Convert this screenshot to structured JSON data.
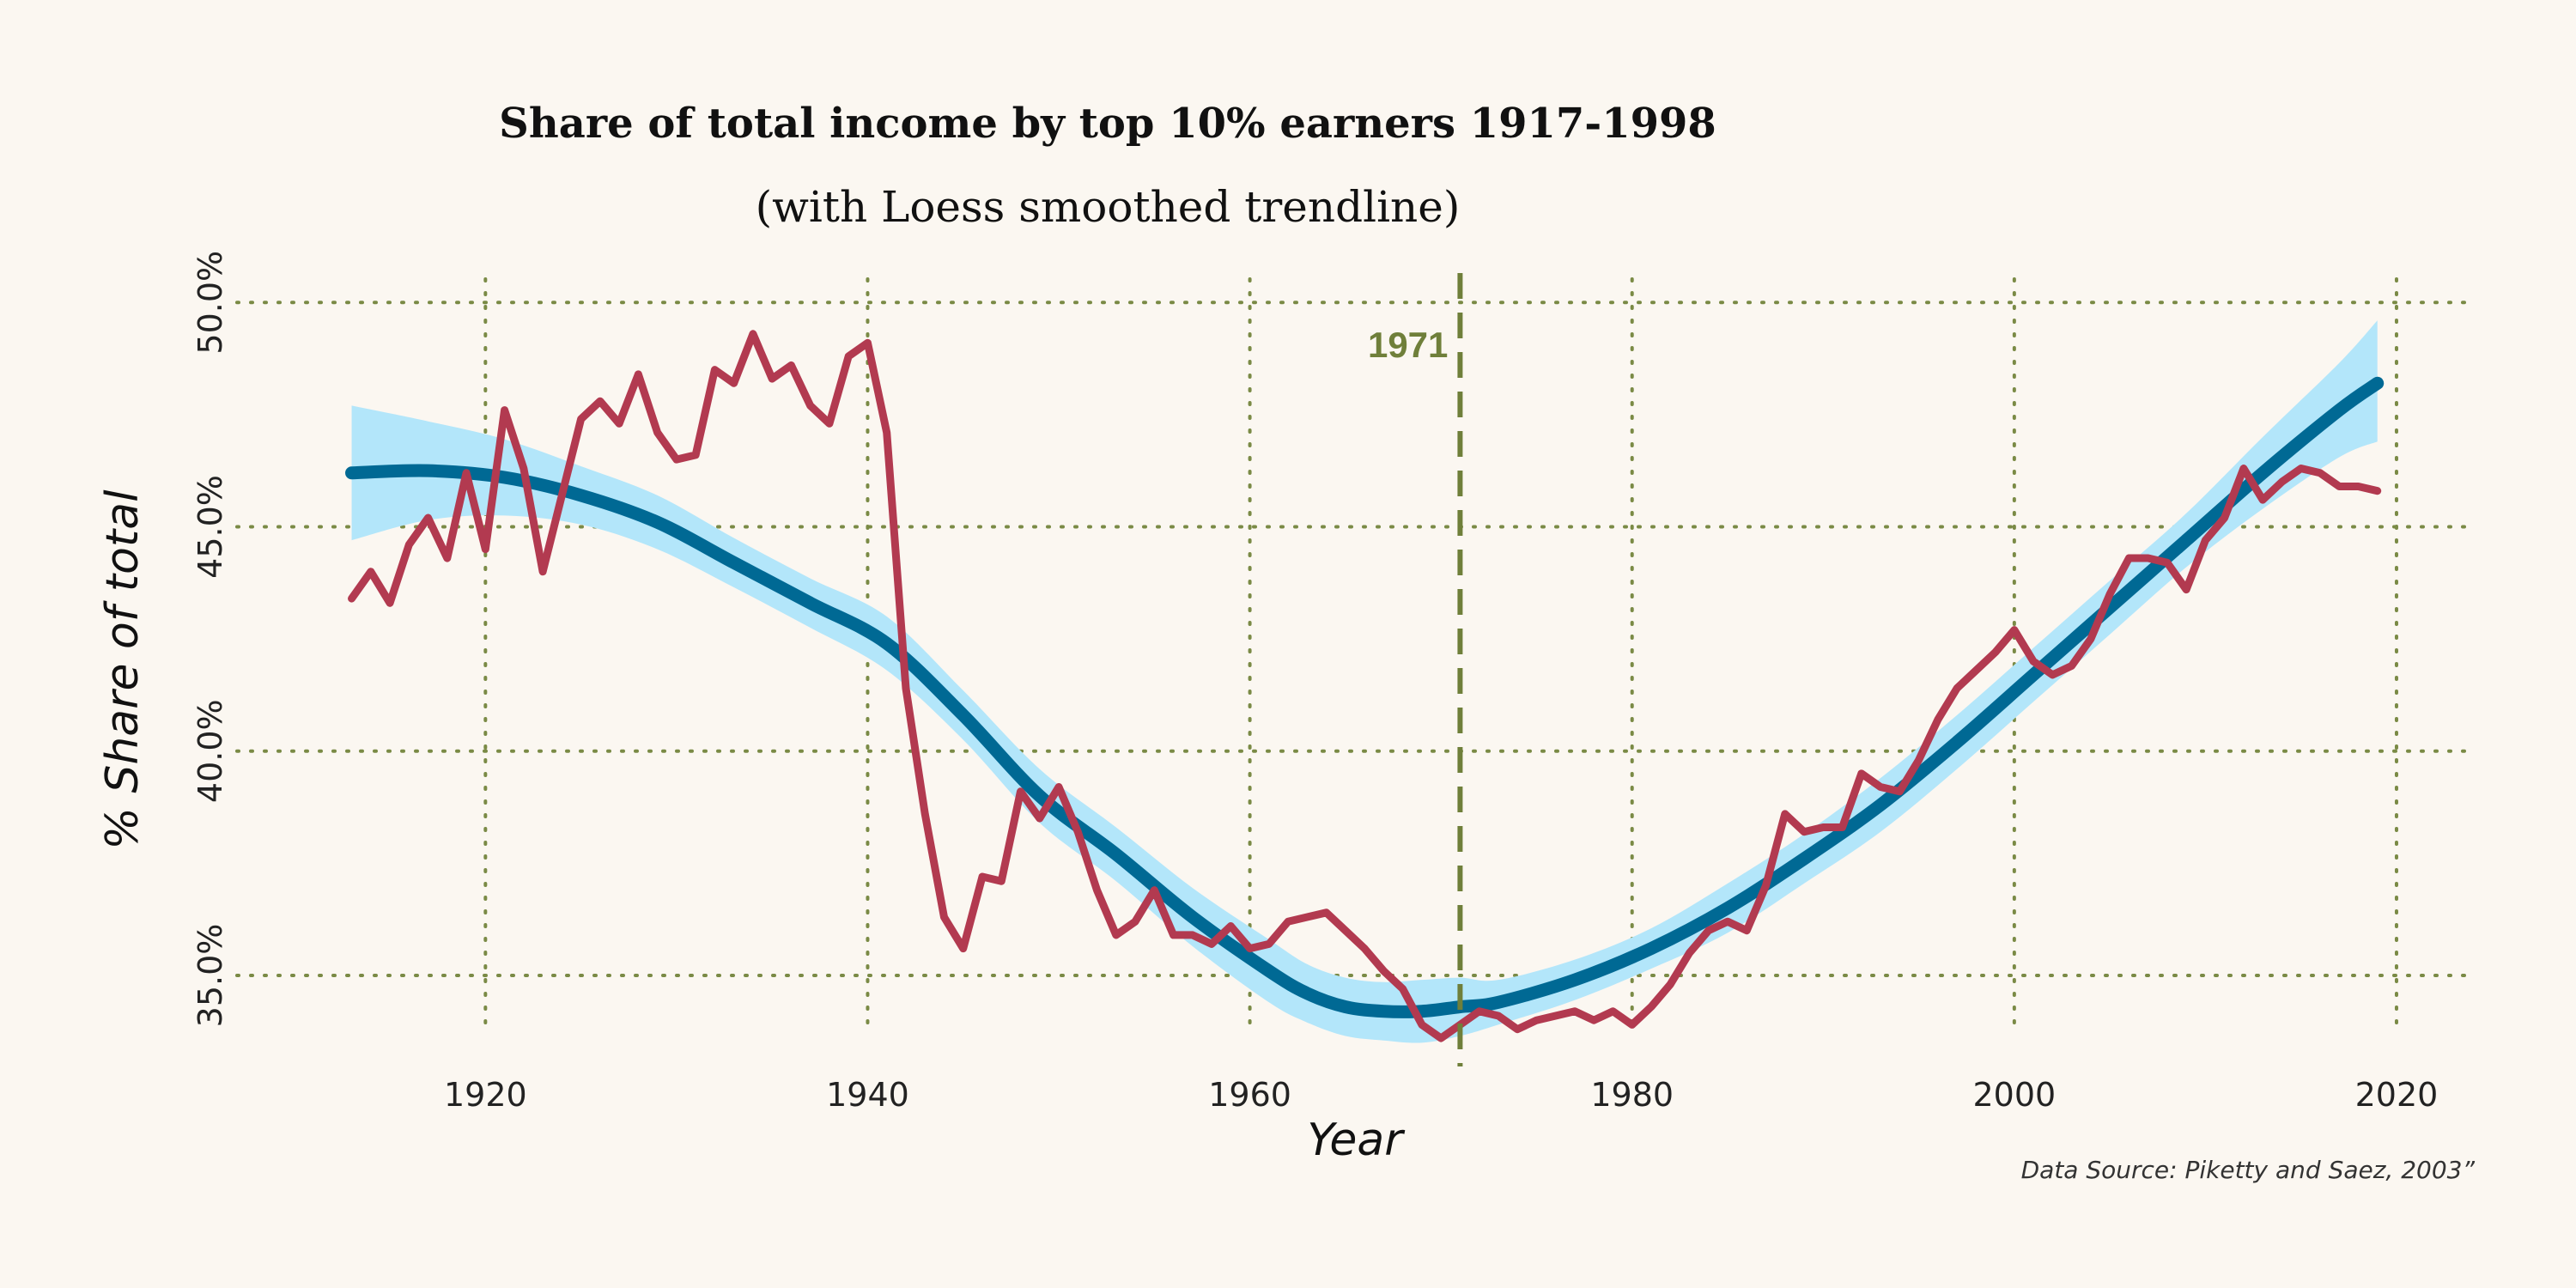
{
  "chart_data": {
    "type": "line",
    "title": "Share of total income by top 10% earners 1917-1998",
    "subtitle": "(with Loess smoothed trendline)",
    "xlabel": "Year",
    "ylabel": "% Share of total",
    "source": "Data Source: Piketty and Saez, 2003”",
    "xlim": [
      1907,
      2024
    ],
    "ylim": [
      33.2,
      51.0
    ],
    "x_ticks": [
      1920,
      1940,
      1960,
      1980,
      2000,
      2020
    ],
    "x_tick_labels": [
      "1920",
      "1940",
      "1960",
      "1980",
      "2000",
      "2020"
    ],
    "y_ticks": [
      35,
      40,
      45,
      50
    ],
    "y_tick_labels": [
      "35.0%",
      "40.0%",
      "45.0%",
      "50.0%"
    ],
    "grid": true,
    "vline": {
      "x": 1971,
      "label": "1971",
      "color": "#6f7f3a"
    },
    "series": [
      {
        "color": "#b23a50",
        "x": [
          1913,
          1914,
          1915,
          1916,
          1917,
          1918,
          1919,
          1920,
          1921,
          1922,
          1923,
          1924,
          1925,
          1926,
          1927,
          1928,
          1929,
          1930,
          1931,
          1932,
          1933,
          1934,
          1935,
          1936,
          1937,
          1938,
          1939,
          1940,
          1941,
          1942,
          1943,
          1944,
          1945,
          1946,
          1947,
          1948,
          1949,
          1950,
          1951,
          1952,
          1953,
          1954,
          1955,
          1956,
          1957,
          1958,
          1959,
          1960,
          1961,
          1962,
          1963,
          1964,
          1965,
          1966,
          1967,
          1968,
          1969,
          1970,
          1971,
          1972,
          1973,
          1974,
          1975,
          1976,
          1977,
          1978,
          1979,
          1980,
          1981,
          1982,
          1983,
          1984,
          1985,
          1986,
          1987,
          1988,
          1989,
          1990,
          1991,
          1992,
          1993,
          1994,
          1995,
          1996,
          1997,
          1998,
          1999,
          2000,
          2001,
          2002,
          2003,
          2004,
          2005,
          2006,
          2007,
          2008,
          2009,
          2010,
          2011,
          2012,
          2013,
          2014,
          2015,
          2016,
          2017,
          2018,
          2019
        ],
        "y": [
          43.4,
          44.0,
          43.3,
          44.6,
          45.2,
          44.3,
          46.2,
          44.5,
          47.6,
          46.3,
          44.0,
          45.7,
          47.4,
          47.8,
          47.3,
          48.4,
          47.1,
          46.5,
          46.6,
          48.5,
          48.2,
          49.3,
          48.3,
          48.6,
          47.7,
          47.3,
          48.8,
          49.1,
          47.1,
          41.4,
          38.6,
          36.3,
          35.6,
          37.2,
          37.1,
          39.1,
          38.5,
          39.2,
          38.2,
          36.9,
          35.9,
          36.2,
          36.9,
          35.9,
          35.9,
          35.7,
          36.1,
          35.6,
          35.7,
          36.2,
          36.3,
          36.4,
          36.0,
          35.6,
          35.1,
          34.7,
          33.9,
          33.6,
          33.9,
          34.2,
          34.1,
          33.8,
          34.0,
          34.1,
          34.2,
          34.0,
          34.2,
          33.9,
          34.3,
          34.8,
          35.5,
          36.0,
          36.2,
          36.0,
          37.0,
          38.6,
          38.2,
          38.3,
          38.3,
          39.5,
          39.2,
          39.1,
          39.8,
          40.7,
          41.4,
          41.8,
          42.2,
          42.7,
          42.0,
          41.7,
          41.9,
          42.5,
          43.5,
          44.3,
          44.3,
          44.2,
          43.6,
          44.7,
          45.2,
          46.3,
          45.6,
          46.0,
          46.3,
          46.2,
          45.9,
          45.9,
          45.8
        ]
      }
    ],
    "trend": {
      "color": "#006994",
      "band_color": "#b3e6fa",
      "x": [
        1913,
        1917,
        1921,
        1925,
        1929,
        1933,
        1937,
        1941,
        1945,
        1949,
        1953,
        1957,
        1961,
        1963,
        1965,
        1967,
        1969,
        1971,
        1973,
        1977,
        1981,
        1985,
        1989,
        1993,
        1997,
        2001,
        2005,
        2009,
        2013,
        2017,
        2019
      ],
      "y": [
        46.2,
        46.25,
        46.1,
        45.7,
        45.1,
        44.2,
        43.3,
        42.4,
        40.8,
        39.0,
        37.7,
        36.3,
        35.1,
        34.6,
        34.3,
        34.2,
        34.2,
        34.3,
        34.4,
        34.9,
        35.6,
        36.5,
        37.6,
        38.8,
        40.2,
        41.7,
        43.2,
        44.7,
        46.2,
        47.6,
        48.2
      ],
      "lower": [
        44.7,
        45.15,
        45.25,
        45.05,
        44.5,
        43.65,
        42.75,
        41.8,
        40.25,
        38.4,
        37.1,
        35.65,
        34.4,
        33.95,
        33.65,
        33.55,
        33.5,
        33.65,
        33.9,
        34.45,
        35.15,
        35.95,
        37.05,
        38.2,
        39.6,
        41.1,
        42.6,
        44.1,
        45.4,
        46.55,
        46.9
      ],
      "upper": [
        47.7,
        47.35,
        46.95,
        46.35,
        45.7,
        44.75,
        43.85,
        43.0,
        41.35,
        39.6,
        38.3,
        36.95,
        35.8,
        35.25,
        34.95,
        34.85,
        34.9,
        34.95,
        34.9,
        35.35,
        36.05,
        37.05,
        38.15,
        39.4,
        40.8,
        42.3,
        43.8,
        45.3,
        47.0,
        48.65,
        49.6
      ]
    }
  }
}
